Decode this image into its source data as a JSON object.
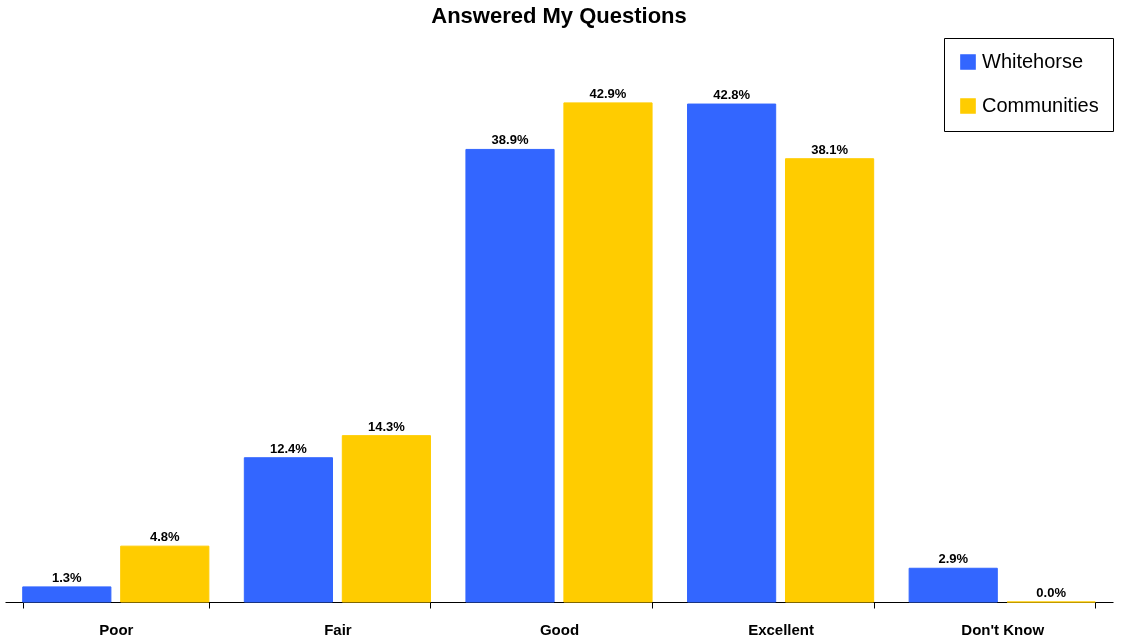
{
  "chart_data": {
    "type": "bar",
    "title": "Answered My Questions",
    "categories": [
      "Poor",
      "Fair",
      "Good",
      "Excellent",
      "Don't Know"
    ],
    "series": [
      {
        "name": "Whitehorse",
        "color": "#3366ff",
        "values": [
          1.3,
          12.4,
          38.9,
          42.8,
          2.9
        ],
        "value_labels": [
          "1.3%",
          "12.4%",
          "38.9%",
          "42.8%",
          "2.9%"
        ]
      },
      {
        "name": "Communities",
        "color": "#ffcc00",
        "values": [
          4.8,
          14.3,
          42.9,
          38.1,
          0.0
        ],
        "value_labels": [
          "4.8%",
          "14.3%",
          "42.9%",
          "38.1%",
          "0.0%"
        ]
      }
    ],
    "legend": "top right",
    "grid": false
  }
}
